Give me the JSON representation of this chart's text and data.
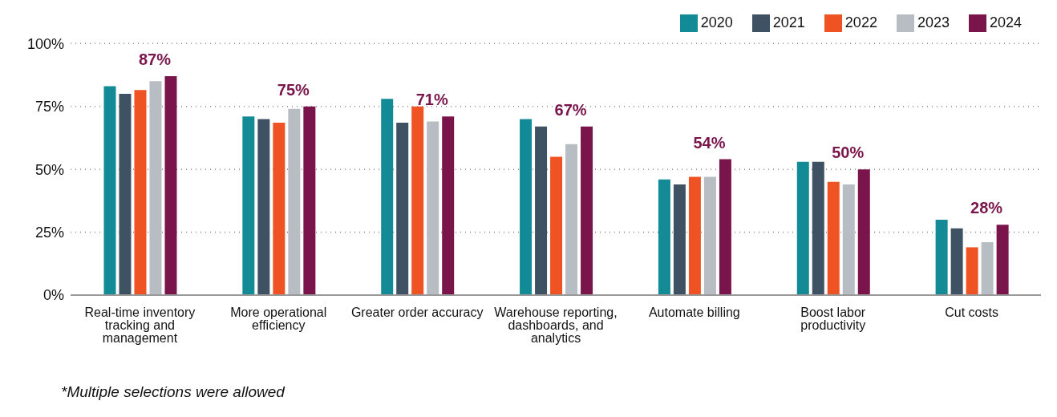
{
  "chart_data": {
    "type": "bar",
    "categories": [
      "Real-time inventory tracking and management",
      "More operational efficiency",
      "Greater order accuracy",
      "Warehouse reporting, dashboards, and analytics",
      "Automate billing",
      "Boost labor productivity",
      "Cut costs"
    ],
    "series": [
      {
        "name": "2020",
        "color": "#138b97",
        "values": [
          83,
          71,
          78,
          70,
          46,
          53,
          30
        ]
      },
      {
        "name": "2021",
        "color": "#3f5263",
        "values": [
          80,
          70,
          68.5,
          67,
          44,
          53,
          26.5
        ]
      },
      {
        "name": "2022",
        "color": "#f05323",
        "values": [
          81.5,
          68.5,
          75,
          55,
          47,
          45,
          19
        ]
      },
      {
        "name": "2023",
        "color": "#b8bdc3",
        "values": [
          85,
          74,
          69,
          60,
          47,
          44,
          21
        ]
      },
      {
        "name": "2024",
        "color": "#7a154b",
        "values": [
          87,
          75,
          71,
          67,
          54,
          50,
          28
        ],
        "value_labels": [
          "87%",
          "75%",
          "71%",
          "67%",
          "54%",
          "50%",
          "28%"
        ]
      }
    ],
    "ylim": [
      0,
      100
    ],
    "yticks": [
      {
        "value": 0,
        "label": "0%"
      },
      {
        "value": 25,
        "label": "25%"
      },
      {
        "value": 50,
        "label": "50%"
      },
      {
        "value": 75,
        "label": "75%"
      },
      {
        "value": 100,
        "label": "100%"
      }
    ],
    "grid": "y",
    "legend": "top right",
    "annotations": [
      "*Multiple selections were allowed"
    ]
  }
}
